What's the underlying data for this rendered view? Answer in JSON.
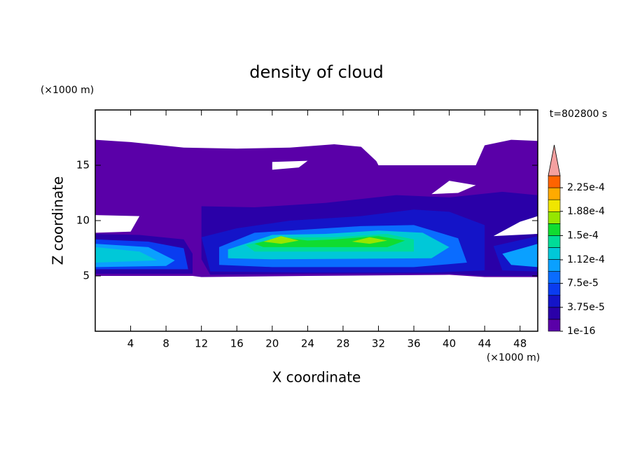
{
  "chart_data": {
    "type": "contour",
    "title": "density of cloud",
    "xlabel": "X coordinate",
    "ylabel": "Z coordinate",
    "x_unit": "(×1000 m)",
    "y_unit": "(×1000 m)",
    "annotation": "t=802800 s",
    "xlim": [
      0,
      50
    ],
    "ylim": [
      0,
      20
    ],
    "xticks": [
      4,
      8,
      12,
      16,
      20,
      24,
      28,
      32,
      36,
      40,
      44,
      48
    ],
    "yticks": [
      5,
      10,
      15
    ],
    "levels": [
      1e-16,
      1.875e-05,
      3.75e-05,
      5.625e-05,
      7.5e-05,
      9.375e-05,
      0.0001125,
      0.00013125,
      0.00015,
      0.00016875,
      0.0001875,
      0.00020625,
      0.000225
    ],
    "colors": [
      "#5a00a8",
      "#2a00a8",
      "#1414c8",
      "#0a3cf0",
      "#0a6cff",
      "#0aa0ff",
      "#00c8d8",
      "#00dc98",
      "#10dc30",
      "#96e600",
      "#f0e600",
      "#ffaa00",
      "#ff6400"
    ],
    "extend_color": "#f4a0a0",
    "clim": [
      1e-16,
      0.00024375
    ],
    "colorbar_ticks": [
      1e-16,
      {
        "value": 3.75e-05,
        "label": "3.75e-5"
      },
      {
        "value": 7.5e-05,
        "label": "7.5e-5"
      },
      {
        "value": 0.000112,
        "label": "1.12e-4"
      },
      {
        "value": 0.00015,
        "label": "1.5e-4"
      },
      {
        "value": 0.000188,
        "label": "1.88e-4"
      },
      {
        "value": 0.000225,
        "label": "2.25e-4"
      }
    ]
  }
}
